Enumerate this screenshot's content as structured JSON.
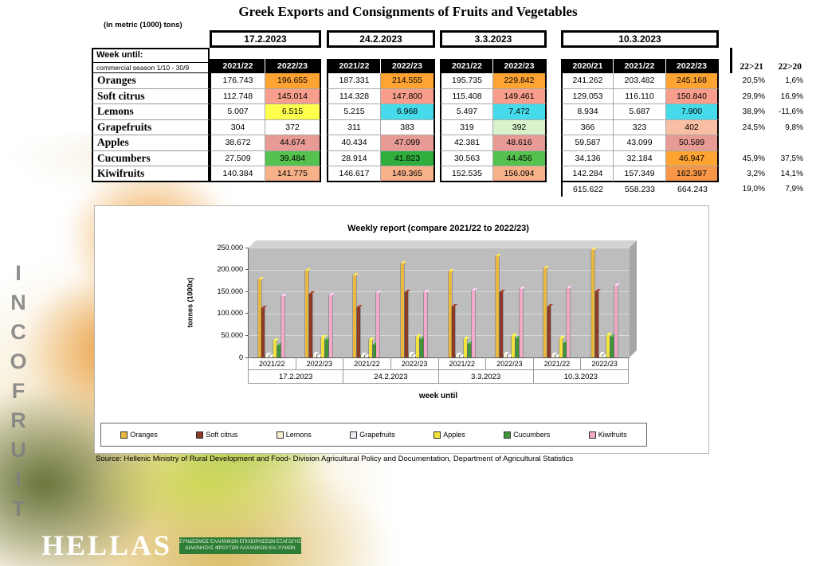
{
  "page": {
    "title": "Greek Exports and Consignments of Fruits and Vegetables",
    "subtitle": "(in metric (1000) tons)",
    "source": "Source: Hellenic Ministry of Rural Development and Food- Division Agricultural Policy and Documentation, Department of Agricultural Statistics"
  },
  "branding": {
    "vertical_text": "INCOFRUIT",
    "bottom_text": "HELLAS",
    "banner_line1": "ΣΥΝΔΕΣΜΟΣ ΕΛΛΗΝΙΚΩΝ ΕΠΙΧΕΙΡΗΣΕΩΝ ΕΞΑΓΩΓΗΣ",
    "banner_line2": "ΔΙΑΚΙΝΗΣΗΣ ΦΡΟΥΤΩΝ ΛΑΧΑΝΙΚΩΝ ΚΑΙ ΧΥΜΩΝ"
  },
  "table": {
    "week_until_label": "Week until:",
    "season_label": "commercial season 1/10 - 30/9",
    "pct_headers": [
      "22>21",
      "22>20"
    ],
    "date_groups": [
      {
        "date": "17.2.2023",
        "years": [
          "2021/22",
          "2022/23"
        ]
      },
      {
        "date": "24.2.2023",
        "years": [
          "2021/22",
          "2022/23"
        ]
      },
      {
        "date": "3.3.2023",
        "years": [
          "2021/22",
          "2022/23"
        ]
      },
      {
        "date": "10.3.2023",
        "years": [
          "2020/21",
          "2021/22",
          "2022/23"
        ]
      }
    ],
    "rows": [
      {
        "name": "Oranges",
        "values": [
          "176.743",
          "196.655",
          "187.331",
          "214.555",
          "195.735",
          "229.842",
          "241.262",
          "203.482",
          "245.168"
        ],
        "colors": [
          "",
          "#FFA333",
          "",
          "#FFA333",
          "",
          "#FFA333",
          "",
          "",
          "#FFA333"
        ],
        "pct": [
          "20,5%",
          "1,6%"
        ]
      },
      {
        "name": "Soft citrus",
        "values": [
          "112.748",
          "145.014",
          "114.328",
          "147.800",
          "115.408",
          "149.461",
          "129.053",
          "116.110",
          "150.840"
        ],
        "colors": [
          "",
          "#F99E8C",
          "",
          "#F99E8C",
          "",
          "#F99E8C",
          "",
          "",
          "#F99E8C"
        ],
        "pct": [
          "29,9%",
          "16,9%"
        ]
      },
      {
        "name": "Lemons",
        "values": [
          "5.007",
          "6.515",
          "5.215",
          "6.968",
          "5.497",
          "7.472",
          "8.934",
          "5.687",
          "7.900"
        ],
        "colors": [
          "",
          "#FFFF4D",
          "",
          "#45DBEA",
          "",
          "#45DBEA",
          "",
          "",
          "#45DBEA"
        ],
        "pct": [
          "38,9%",
          "-11,6%"
        ]
      },
      {
        "name": "Grapefruits",
        "values": [
          "304",
          "372",
          "311",
          "383",
          "319",
          "392",
          "366",
          "323",
          "402"
        ],
        "colors": [
          "",
          "",
          "",
          "",
          "",
          "#D9F2CC",
          "",
          "",
          "#F9BFA4"
        ],
        "pct": [
          "24,5%",
          "9,8%"
        ]
      },
      {
        "name": "Apples",
        "values": [
          "38.672",
          "44.674",
          "40.434",
          "47.099",
          "42.381",
          "48.616",
          "59.587",
          "43.099",
          "50.589"
        ],
        "colors": [
          "",
          "#E89B94",
          "",
          "#E89B94",
          "",
          "#E89B94",
          "",
          "",
          "#E89B94"
        ],
        "pct": [
          "",
          ""
        ]
      },
      {
        "name": "Cucumbers",
        "values": [
          "27.509",
          "39.484",
          "28.914",
          "41.823",
          "30.563",
          "44.456",
          "34.136",
          "32.184",
          "46.947"
        ],
        "colors": [
          "",
          "#55C14F",
          "",
          "#2FAE3E",
          "",
          "#55C14F",
          "",
          "",
          "#FFA333"
        ],
        "pct": [
          "45,9%",
          "37,5%"
        ]
      },
      {
        "name": "Kiwifruits",
        "values": [
          "140.384",
          "141.775",
          "146.617",
          "149.365",
          "152.535",
          "156.094",
          "142.284",
          "157.349",
          "162.397"
        ],
        "colors": [
          "",
          "#F7B189",
          "",
          "#F7B189",
          "",
          "#F7B189",
          "",
          "",
          "#F79646"
        ],
        "pct": [
          "3,2%",
          "14,1%"
        ]
      }
    ],
    "totals": {
      "values": [
        "615.622",
        "558.233",
        "664.243"
      ],
      "pct": [
        "19,0%",
        "7,9%"
      ]
    }
  },
  "chart_data": {
    "type": "bar",
    "title": "Weekly report (compare 2021/22 to 2022/23)",
    "ylabel": "tonnes (1000x)",
    "xlabel": "week until",
    "ylim": [
      0,
      250000
    ],
    "yticks": [
      "250.000",
      "200.000",
      "150.000",
      "100.000",
      "50.000",
      "0"
    ],
    "grid": true,
    "legend_position": "bottom",
    "weeks": [
      "17.2.2023",
      "24.2.2023",
      "3.3.2023",
      "10.3.2023"
    ],
    "series": [
      {
        "name": "Oranges",
        "color": "#E9B93F"
      },
      {
        "name": "Soft citrus",
        "color": "#8C3A28"
      },
      {
        "name": "Lemons",
        "color": "#F6F1D3"
      },
      {
        "name": "Grapefruits",
        "color": "#E9EDF2"
      },
      {
        "name": "Apples",
        "color": "#F1E23C"
      },
      {
        "name": "Cucumbers",
        "color": "#3E9639"
      },
      {
        "name": "Kiwifruits",
        "color": "#F2A8C6"
      }
    ],
    "groups": [
      {
        "week": "17.2.2023",
        "season": "2021/22",
        "values": [
          176743,
          112748,
          5007,
          304,
          38672,
          27509,
          140384
        ]
      },
      {
        "week": "17.2.2023",
        "season": "2022/23",
        "values": [
          196655,
          145014,
          6515,
          372,
          44674,
          39484,
          141775
        ]
      },
      {
        "week": "24.2.2023",
        "season": "2021/22",
        "values": [
          187331,
          114328,
          5215,
          311,
          40434,
          28914,
          146617
        ]
      },
      {
        "week": "24.2.2023",
        "season": "2022/23",
        "values": [
          214555,
          147800,
          6968,
          383,
          47099,
          41823,
          149365
        ]
      },
      {
        "week": "3.3.2023",
        "season": "2021/22",
        "values": [
          195735,
          115408,
          5497,
          319,
          42381,
          30563,
          152535
        ]
      },
      {
        "week": "3.3.2023",
        "season": "2022/23",
        "values": [
          229842,
          149461,
          7472,
          392,
          48616,
          44456,
          156094
        ]
      },
      {
        "week": "10.3.2023",
        "season": "2021/22",
        "values": [
          203482,
          116110,
          5687,
          323,
          43099,
          32184,
          157349
        ]
      },
      {
        "week": "10.3.2023",
        "season": "2022/23",
        "values": [
          245168,
          150840,
          7900,
          402,
          50589,
          46947,
          162397
        ]
      }
    ]
  }
}
